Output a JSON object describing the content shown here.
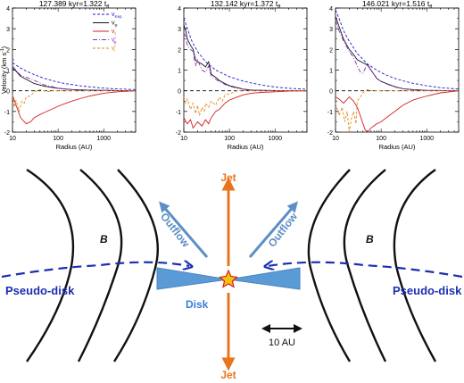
{
  "chart_data": [
    {
      "type": "line",
      "title": "127.389 kyr=1.322 t",
      "title_sub": "ff",
      "xlabel": "Radius (AU)",
      "ylabel": "Velocity (km s",
      "ylabel_sup": "-1",
      "ylabel_close": ")",
      "xscale": "log",
      "xlim": [
        10,
        5000
      ],
      "ylim": [
        -2,
        4
      ],
      "xticks": [
        "10",
        "100",
        "1000"
      ],
      "yticks": [
        "-2",
        "-1",
        "0",
        "1",
        "2",
        "3",
        "4"
      ],
      "legend": {
        "position": "top-right",
        "entries": [
          {
            "base": "v",
            "sub": "Kep",
            "color": "#1a1acc",
            "dash": "3,2"
          },
          {
            "base": "v",
            "sub": "φ",
            "color": "#111111",
            "dash": ""
          },
          {
            "base": "v",
            "sub": "r",
            "color": "#d42020",
            "dash": ""
          },
          {
            "base": "v",
            "sub": "φ",
            "sup": "i",
            "color": "#8b2fb8",
            "dash": "5,2,1,2"
          },
          {
            "base": "v",
            "sub": "r",
            "sup": "i",
            "color": "#e08a20",
            "dash": "3,2"
          }
        ]
      },
      "series": [
        {
          "name": "v_Kep",
          "color": "#1a1acc",
          "dash": "3,2",
          "x": [
            10,
            15,
            20,
            30,
            50,
            80,
            100,
            150,
            200,
            300,
            500,
            1000,
            2000,
            5000
          ],
          "y": [
            1.35,
            1.1,
            0.95,
            0.78,
            0.6,
            0.47,
            0.42,
            0.34,
            0.3,
            0.24,
            0.19,
            0.13,
            0.09,
            0.06
          ]
        },
        {
          "name": "v_φ",
          "color": "#111111",
          "dash": "",
          "x": [
            10,
            12,
            15,
            20,
            30,
            50,
            80,
            100,
            150,
            200,
            300,
            500,
            1000,
            2000,
            5000
          ],
          "y": [
            1.1,
            0.95,
            0.7,
            0.55,
            0.35,
            0.22,
            0.15,
            0.12,
            0.08,
            0.06,
            0.04,
            0.03,
            0.02,
            0.01,
            0.0
          ]
        },
        {
          "name": "v_r",
          "color": "#d42020",
          "dash": "",
          "x": [
            10,
            12,
            15,
            20,
            25,
            30,
            40,
            50,
            80,
            100,
            150,
            200,
            300,
            500,
            1000,
            2000,
            5000
          ],
          "y": [
            -0.2,
            -0.7,
            -1.3,
            -1.6,
            -1.5,
            -1.3,
            -1.15,
            -1.05,
            -0.85,
            -0.75,
            -0.6,
            -0.5,
            -0.38,
            -0.25,
            -0.12,
            -0.05,
            0.0
          ]
        },
        {
          "name": "v_φ^i",
          "color": "#8b2fb8",
          "dash": "5,2,1,2",
          "x": [
            10,
            12,
            15,
            20,
            30,
            40,
            50,
            80,
            100,
            150,
            200,
            300,
            500,
            1000,
            2000,
            5000
          ],
          "y": [
            1.2,
            1.0,
            0.75,
            0.65,
            0.5,
            0.38,
            0.28,
            0.18,
            0.13,
            0.08,
            0.06,
            0.04,
            0.03,
            0.02,
            0.01,
            0.0
          ]
        },
        {
          "name": "v_r^i",
          "color": "#e08a20",
          "dash": "3,2",
          "x": [
            10,
            11,
            12,
            14,
            16,
            18,
            20,
            25,
            30,
            40,
            50,
            60,
            80,
            100,
            200,
            500,
            1000,
            5000
          ],
          "y": [
            -0.2,
            -0.8,
            -0.45,
            -1.0,
            -0.5,
            -0.6,
            -0.3,
            -0.25,
            -0.05,
            0.05,
            0.0,
            -0.05,
            0.02,
            0.0,
            0.0,
            0.0,
            0.0,
            0.0
          ]
        }
      ]
    },
    {
      "type": "line",
      "title": "132.142 kyr=1.372 t",
      "title_sub": "ff",
      "xlabel": "Radius (AU)",
      "xscale": "log",
      "xlim": [
        10,
        5000
      ],
      "ylim": [
        -2,
        4
      ],
      "xticks": [
        "10",
        "100",
        "1000"
      ],
      "yticks": [
        "-2",
        "-1",
        "0",
        "1",
        "2",
        "3",
        "4"
      ],
      "series": [
        {
          "name": "v_Kep",
          "color": "#1a1acc",
          "dash": "3,2",
          "x": [
            10,
            12,
            15,
            20,
            30,
            50,
            80,
            100,
            150,
            200,
            300,
            500,
            1000,
            2000,
            5000
          ],
          "y": [
            3.5,
            3.0,
            2.4,
            1.9,
            1.4,
            1.0,
            0.78,
            0.68,
            0.55,
            0.47,
            0.38,
            0.28,
            0.18,
            0.12,
            0.07
          ]
        },
        {
          "name": "v_φ",
          "color": "#111111",
          "dash": "",
          "x": [
            10,
            11,
            12,
            14,
            16,
            18,
            20,
            25,
            30,
            35,
            40,
            50,
            60,
            80,
            100,
            150,
            200,
            300,
            500,
            1000,
            5000
          ],
          "y": [
            3.2,
            2.9,
            2.5,
            2.2,
            2.0,
            1.5,
            1.4,
            1.3,
            1.15,
            1.4,
            0.8,
            0.65,
            0.5,
            0.35,
            0.25,
            0.15,
            0.08,
            0.03,
            0.02,
            0.01,
            0.0
          ]
        },
        {
          "name": "v_r",
          "color": "#d42020",
          "dash": "",
          "x": [
            10,
            12,
            14,
            16,
            20,
            25,
            30,
            35,
            40,
            50,
            60,
            80,
            100,
            150,
            200,
            300,
            500,
            1000,
            2000,
            5000
          ],
          "y": [
            -1.3,
            -1.6,
            -1.4,
            -1.8,
            -1.5,
            -1.7,
            -1.4,
            -1.6,
            -1.3,
            -1.0,
            -0.9,
            -0.6,
            -0.45,
            -0.3,
            -0.2,
            -0.12,
            -0.08,
            -0.05,
            -0.02,
            0.0
          ]
        },
        {
          "name": "v_φ^i",
          "color": "#8b2fb8",
          "dash": "5,2,1,2",
          "x": [
            10,
            11,
            12,
            14,
            16,
            18,
            20,
            25,
            30,
            35,
            40,
            50,
            60,
            80,
            100,
            150,
            200,
            300,
            500,
            1000,
            5000
          ],
          "y": [
            2.8,
            2.6,
            2.2,
            2.0,
            1.9,
            1.2,
            1.5,
            1.0,
            0.9,
            1.2,
            0.7,
            0.55,
            0.45,
            0.3,
            0.22,
            0.12,
            0.08,
            0.04,
            0.02,
            0.01,
            0.0
          ]
        },
        {
          "name": "v_r^i",
          "color": "#e08a20",
          "dash": "3,2",
          "x": [
            10,
            11,
            12,
            14,
            16,
            18,
            20,
            22,
            25,
            28,
            30,
            35,
            40,
            50,
            60,
            70,
            80,
            100,
            150,
            200,
            500,
            5000
          ],
          "y": [
            -0.3,
            -0.6,
            -0.4,
            -0.9,
            -0.6,
            -1.1,
            -0.7,
            -1.2,
            -0.8,
            -1.0,
            -0.6,
            -0.8,
            -0.5,
            -0.7,
            -0.3,
            -0.5,
            -0.2,
            -0.15,
            0.0,
            0.02,
            0.0,
            0.0
          ]
        }
      ]
    },
    {
      "type": "line",
      "title": "146.021 kyr=1.516 t",
      "title_sub": "ff",
      "xlabel": "Radius (AU)",
      "xscale": "log",
      "xlim": [
        10,
        5000
      ],
      "ylim": [
        -2,
        4
      ],
      "xticks": [
        "10",
        "100",
        "1000"
      ],
      "yticks": [
        "-2",
        "-1",
        "0",
        "1",
        "2",
        "3",
        "4"
      ],
      "series": [
        {
          "name": "v_Kep",
          "color": "#1a1acc",
          "dash": "3,2",
          "x": [
            10,
            12,
            15,
            20,
            30,
            50,
            80,
            100,
            150,
            200,
            300,
            500,
            1000,
            2000,
            5000
          ],
          "y": [
            3.9,
            3.5,
            2.9,
            2.4,
            1.8,
            1.3,
            1.0,
            0.88,
            0.7,
            0.6,
            0.48,
            0.36,
            0.24,
            0.15,
            0.08
          ]
        },
        {
          "name": "v_φ",
          "color": "#111111",
          "dash": "",
          "x": [
            10,
            12,
            15,
            20,
            25,
            30,
            40,
            50,
            60,
            80,
            100,
            150,
            200,
            300,
            500,
            1000,
            5000
          ],
          "y": [
            3.6,
            3.1,
            2.5,
            2.0,
            1.75,
            1.5,
            1.35,
            1.25,
            1.0,
            0.6,
            0.45,
            0.3,
            0.2,
            0.1,
            0.05,
            0.02,
            0.0
          ]
        },
        {
          "name": "v_r",
          "color": "#d42020",
          "dash": "",
          "x": [
            10,
            12,
            15,
            20,
            25,
            30,
            35,
            40,
            45,
            50,
            60,
            80,
            100,
            150,
            200,
            300,
            500,
            1000,
            2000,
            5000
          ],
          "y": [
            -0.3,
            -0.4,
            -0.6,
            -0.3,
            -0.5,
            -0.8,
            -1.2,
            -1.6,
            -1.9,
            -2.0,
            -1.8,
            -1.6,
            -1.5,
            -1.2,
            -1.0,
            -0.7,
            -0.45,
            -0.25,
            -0.1,
            0.0
          ]
        },
        {
          "name": "v_φ^i",
          "color": "#8b2fb8",
          "dash": "5,2,1,2",
          "x": [
            10,
            12,
            15,
            20,
            25,
            30,
            35,
            40,
            50,
            60,
            80,
            100,
            150,
            200,
            300,
            500,
            1000,
            5000
          ],
          "y": [
            3.4,
            2.9,
            2.4,
            1.9,
            1.6,
            1.2,
            0.9,
            0.85,
            1.3,
            1.0,
            0.6,
            0.45,
            0.28,
            0.18,
            0.1,
            0.05,
            0.02,
            0.0
          ]
        },
        {
          "name": "v_r^i",
          "color": "#e08a20",
          "dash": "3,2",
          "x": [
            10,
            12,
            14,
            16,
            18,
            20,
            22,
            25,
            28,
            30,
            35,
            40,
            50,
            60,
            80,
            100,
            200,
            500,
            5000
          ],
          "y": [
            -0.6,
            -1.2,
            -0.8,
            -1.5,
            -1.0,
            -2.0,
            -1.4,
            -1.0,
            -1.6,
            -0.5,
            -0.3,
            -0.1,
            0.05,
            0.0,
            0.0,
            0.0,
            0.0,
            0.0,
            0.0
          ]
        }
      ]
    }
  ],
  "schematic": {
    "labels": {
      "jet_top": "Jet",
      "jet_bottom": "Jet",
      "outflow_left": "Outflow",
      "outflow_right": "Outflow",
      "pseudo_disk_left": "Pseudo-disk",
      "pseudo_disk_right": "Pseudo-disk",
      "disk": "Disk",
      "b_left": "B",
      "b_right": "B",
      "scale_bar": "10 AU"
    },
    "colors": {
      "jet": "#e8741e",
      "outflow": "#5d8fc4",
      "pseudo_disk": "#1b2fb3",
      "disk": "#5b9bd5",
      "disk_label": "#3b7dd8",
      "field_lines": "#111111",
      "star": "#f2c10f",
      "star_edge": "#d82020"
    },
    "icons": [
      "star-icon",
      "jet-arrow-up-icon",
      "jet-arrow-down-icon",
      "outflow-arrow-icon",
      "scale-bar-arrow-icon"
    ]
  }
}
